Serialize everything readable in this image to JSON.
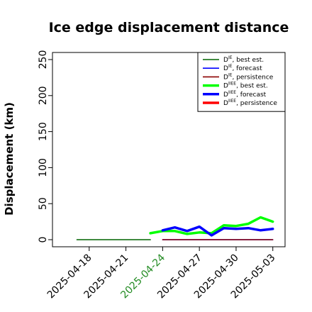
{
  "chart_data": {
    "type": "line",
    "title": "Ice edge displacement distance",
    "xlabel": "",
    "ylabel": "Displacement (km)",
    "ylim": [
      0,
      260
    ],
    "y_ticks": [
      0,
      50,
      100,
      150,
      200,
      250
    ],
    "xlim": [
      "2025-04-15",
      "2025-05-04"
    ],
    "x_ticks": [
      "2025-04-18",
      "2025-04-21",
      "2025-04-24",
      "2025-04-27",
      "2025-04-30",
      "2025-05-03"
    ],
    "highlighted_tick": "2025-04-24",
    "highlight_color": "#228B22",
    "grid": false,
    "legend_position": "top-right",
    "series": [
      {
        "name": "D",
        "sup": "IE",
        "suffix": ", best est.",
        "color": "#006400",
        "width": 1.6,
        "x": [
          "2025-04-17",
          "2025-04-18",
          "2025-04-19",
          "2025-04-20",
          "2025-04-21",
          "2025-04-22",
          "2025-04-23"
        ],
        "y": [
          0,
          0,
          0,
          0,
          0,
          0,
          0
        ]
      },
      {
        "name": "D",
        "sup": "IE",
        "suffix": ", forecast",
        "color": "#0000ff",
        "width": 1.6,
        "x": [
          "2025-04-24",
          "2025-05-03"
        ],
        "y": [
          0,
          0
        ]
      },
      {
        "name": "D",
        "sup": "IE",
        "suffix": ", persistence",
        "color": "#8b0000",
        "width": 1.6,
        "x": [
          "2025-04-24",
          "2025-04-25",
          "2025-04-26",
          "2025-04-27",
          "2025-04-28",
          "2025-04-29",
          "2025-04-30",
          "2025-05-01",
          "2025-05-02",
          "2025-05-03"
        ],
        "y": [
          0,
          0,
          0,
          0,
          0,
          0,
          0,
          0,
          0,
          0
        ]
      },
      {
        "name": "D",
        "sup": "IIEE",
        "suffix": ", best est.",
        "color": "#00ff00",
        "width": 3.5,
        "x": [
          "2025-04-23",
          "2025-04-24",
          "2025-04-25",
          "2025-04-26",
          "2025-04-27",
          "2025-04-28",
          "2025-04-29",
          "2025-04-30",
          "2025-05-01",
          "2025-05-02",
          "2025-05-03"
        ],
        "y": [
          9,
          12,
          12,
          8,
          10,
          9,
          20,
          19,
          22,
          31,
          25
        ]
      },
      {
        "name": "D",
        "sup": "IIEE",
        "suffix": ", forecast",
        "color": "#0000ff",
        "width": 3.5,
        "x": [
          "2025-04-24",
          "2025-04-25",
          "2025-04-26",
          "2025-04-27",
          "2025-04-28",
          "2025-04-29",
          "2025-04-30",
          "2025-05-01",
          "2025-05-02",
          "2025-05-03"
        ],
        "y": [
          13,
          17,
          12,
          18,
          6,
          16,
          15,
          16,
          13,
          15
        ]
      },
      {
        "name": "D",
        "sup": "IIEE",
        "suffix": ", persistence",
        "color": "#ff0000",
        "width": 3.5,
        "x": [],
        "y": []
      }
    ]
  }
}
